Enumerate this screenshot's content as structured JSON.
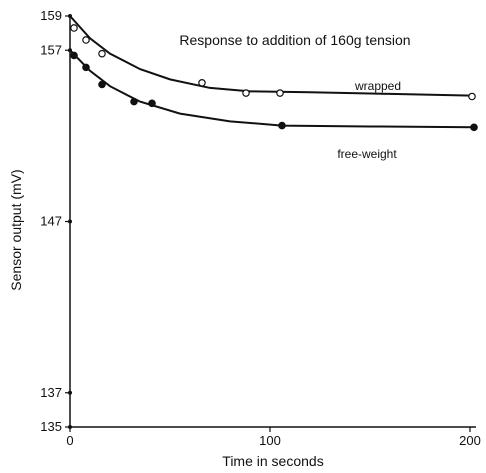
{
  "chart_data": {
    "type": "scatter",
    "title": "Response to addition of 160g tension",
    "xlabel": "Time in seconds",
    "ylabel": "Sensor output (mV)",
    "xlim": [
      0,
      200
    ],
    "ylim": [
      135,
      159
    ],
    "x_ticks": [
      0,
      100,
      200
    ],
    "y_ticks": [
      135,
      137,
      147,
      157,
      159
    ],
    "grid": false,
    "series": [
      {
        "name": "wrapped",
        "marker": "open-circle",
        "color": "#111111",
        "points": [
          {
            "x": 2,
            "y": 158.3
          },
          {
            "x": 8,
            "y": 157.6
          },
          {
            "x": 16,
            "y": 156.8
          },
          {
            "x": 66,
            "y": 155.1
          },
          {
            "x": 88,
            "y": 154.5
          },
          {
            "x": 105,
            "y": 154.5
          },
          {
            "x": 201,
            "y": 154.3
          }
        ],
        "curve": [
          {
            "x": 0,
            "y": 159.0
          },
          {
            "x": 10,
            "y": 157.7
          },
          {
            "x": 20,
            "y": 156.8
          },
          {
            "x": 35,
            "y": 155.9
          },
          {
            "x": 50,
            "y": 155.3
          },
          {
            "x": 70,
            "y": 154.8
          },
          {
            "x": 90,
            "y": 154.6
          },
          {
            "x": 120,
            "y": 154.55
          },
          {
            "x": 160,
            "y": 154.45
          },
          {
            "x": 201,
            "y": 154.35
          }
        ]
      },
      {
        "name": "free-weight",
        "marker": "filled-circle",
        "color": "#111111",
        "points": [
          {
            "x": 2,
            "y": 156.7
          },
          {
            "x": 8,
            "y": 156.0
          },
          {
            "x": 16,
            "y": 155.0
          },
          {
            "x": 32,
            "y": 154.0
          },
          {
            "x": 41,
            "y": 153.9
          },
          {
            "x": 106,
            "y": 152.6
          },
          {
            "x": 202,
            "y": 152.5
          }
        ],
        "curve": [
          {
            "x": 0,
            "y": 157.0
          },
          {
            "x": 10,
            "y": 155.8
          },
          {
            "x": 20,
            "y": 154.9
          },
          {
            "x": 35,
            "y": 154.0
          },
          {
            "x": 55,
            "y": 153.3
          },
          {
            "x": 80,
            "y": 152.85
          },
          {
            "x": 106,
            "y": 152.6
          },
          {
            "x": 150,
            "y": 152.55
          },
          {
            "x": 202,
            "y": 152.5
          }
        ]
      }
    ]
  }
}
